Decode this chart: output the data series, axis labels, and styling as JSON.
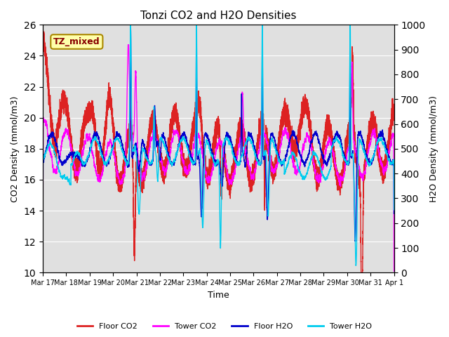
{
  "title": "Tonzi CO2 and H2O Densities",
  "xlabel": "Time",
  "ylabel_left": "CO2 Density (mmol/m3)",
  "ylabel_right": "H2O Density (mmol/m3)",
  "annotation": "TZ_mixed",
  "annotation_color": "#880000",
  "annotation_bg": "#ffffaa",
  "annotation_border": "#aa8800",
  "ylim_left": [
    10,
    26
  ],
  "ylim_right": [
    0,
    1000
  ],
  "yticks_left": [
    10,
    12,
    14,
    16,
    18,
    20,
    22,
    24,
    26
  ],
  "yticks_right": [
    0,
    100,
    200,
    300,
    400,
    500,
    600,
    700,
    800,
    900,
    1000
  ],
  "colors": {
    "floor_co2": "#dd2222",
    "tower_co2": "#ff00ff",
    "floor_h2o": "#0000cc",
    "tower_h2o": "#00ccee"
  },
  "linewidths": {
    "floor_co2": 1.0,
    "tower_co2": 1.0,
    "floor_h2o": 1.0,
    "tower_h2o": 1.0
  },
  "legend_labels": [
    "Floor CO2",
    "Tower CO2",
    "Floor H2O",
    "Tower H2O"
  ],
  "x_tick_labels": [
    "Mar 17",
    "Mar 18",
    "Mar 19",
    "Mar 20",
    "Mar 21",
    "Mar 22",
    "Mar 23",
    "Mar 24",
    "Mar 25",
    "Mar 26",
    "Mar 27",
    "Mar 28",
    "Mar 29",
    "Mar 30",
    "Mar 31",
    "Apr 1"
  ],
  "bg_color": "#e0e0e0",
  "fig_color": "#ffffff",
  "n_points": 15000,
  "seed": 42
}
